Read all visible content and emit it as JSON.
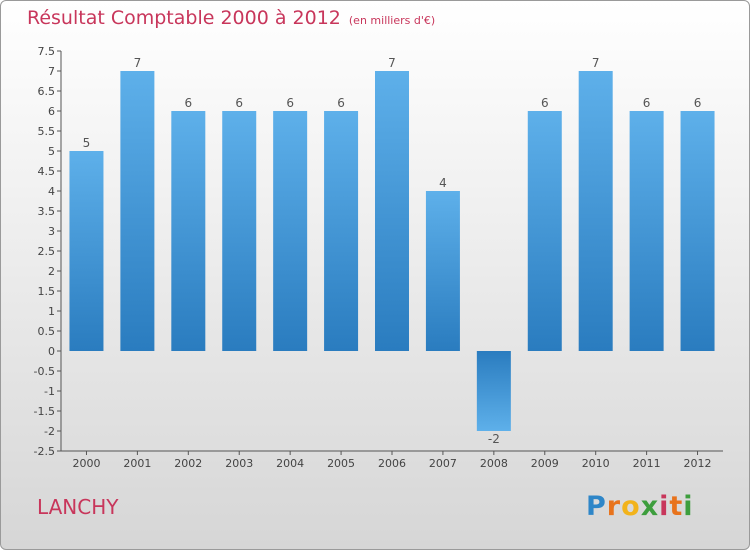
{
  "header": {
    "title": "Résultat Comptable 2000 à 2012",
    "unit": "(en milliers d'€)"
  },
  "footer": {
    "commune": "LANCHY",
    "logo_text": "Proxiti"
  },
  "colors": {
    "title": "#c8365b",
    "bar_light": "#5eb0ea",
    "bar_dark": "#2a7cbf",
    "axis": "#444444"
  },
  "chart_data": {
    "type": "bar",
    "title": "Résultat Comptable 2000 à 2012",
    "xlabel": "",
    "ylabel": "en milliers d'€",
    "ylim": [
      -2.5,
      7.5
    ],
    "yticks": [
      "7.5",
      "7",
      "6.5",
      "6",
      "5.5",
      "5",
      "4.5",
      "4",
      "3.5",
      "3",
      "2.5",
      "2",
      "1.5",
      "1",
      "0.5",
      "0",
      "-0.5",
      "-1",
      "-1.5",
      "-2",
      "-2.5"
    ],
    "categories": [
      "2000",
      "2001",
      "2002",
      "2003",
      "2004",
      "2005",
      "2006",
      "2007",
      "2008",
      "2009",
      "2010",
      "2011",
      "2012"
    ],
    "values": [
      5,
      7,
      6,
      6,
      6,
      6,
      7,
      4,
      -2,
      6,
      7,
      6,
      6
    ],
    "labels": [
      "5",
      "7",
      "6",
      "6",
      "6",
      "6",
      "7",
      "4",
      "-2",
      "6",
      "7",
      "6",
      "6"
    ]
  }
}
